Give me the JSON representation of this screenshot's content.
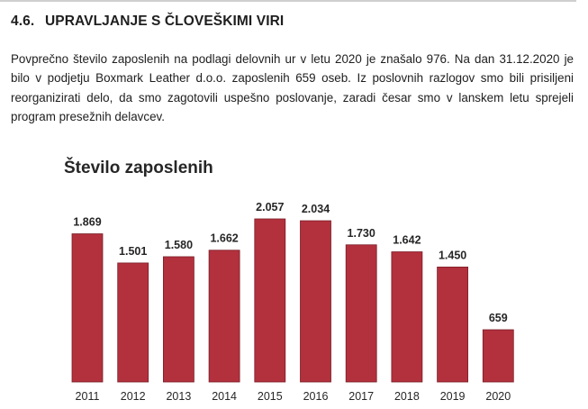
{
  "section": {
    "number": "4.6.",
    "title": "UPRAVLJANJE S ČLOVEŠKIMI VIRI"
  },
  "paragraph": "Povprečno število zaposlenih na podlagi delovnih ur v letu 2020 je znašalo 976. Na dan 31.12.2020 je bilo v podjetju Boxmark Leather d.o.o. zaposlenih 659 oseb. Iz poslovnih razlogov smo bili prisiljeni reorganizirati delo, da smo zagotovili uspešno poslovanje, zaradi česar smo v lanskem letu sprejeli program presežnih delavcev.",
  "chart_data": {
    "type": "bar",
    "title": "Število zaposlenih",
    "xlabel": "",
    "ylabel": "",
    "categories": [
      "2011",
      "2012",
      "2013",
      "2014",
      "2015",
      "2016",
      "2017",
      "2018",
      "2019",
      "2020"
    ],
    "values": [
      1869,
      1501,
      1580,
      1662,
      2057,
      2034,
      1730,
      1642,
      1450,
      659
    ],
    "data_labels": [
      "1.869",
      "1.501",
      "1.580",
      "1.662",
      "2.057",
      "2.034",
      "1.730",
      "1.642",
      "1.450",
      "659"
    ],
    "ylim": [
      0,
      2100
    ],
    "grid": false,
    "legend": "none",
    "bar_color": "#b3303d"
  }
}
